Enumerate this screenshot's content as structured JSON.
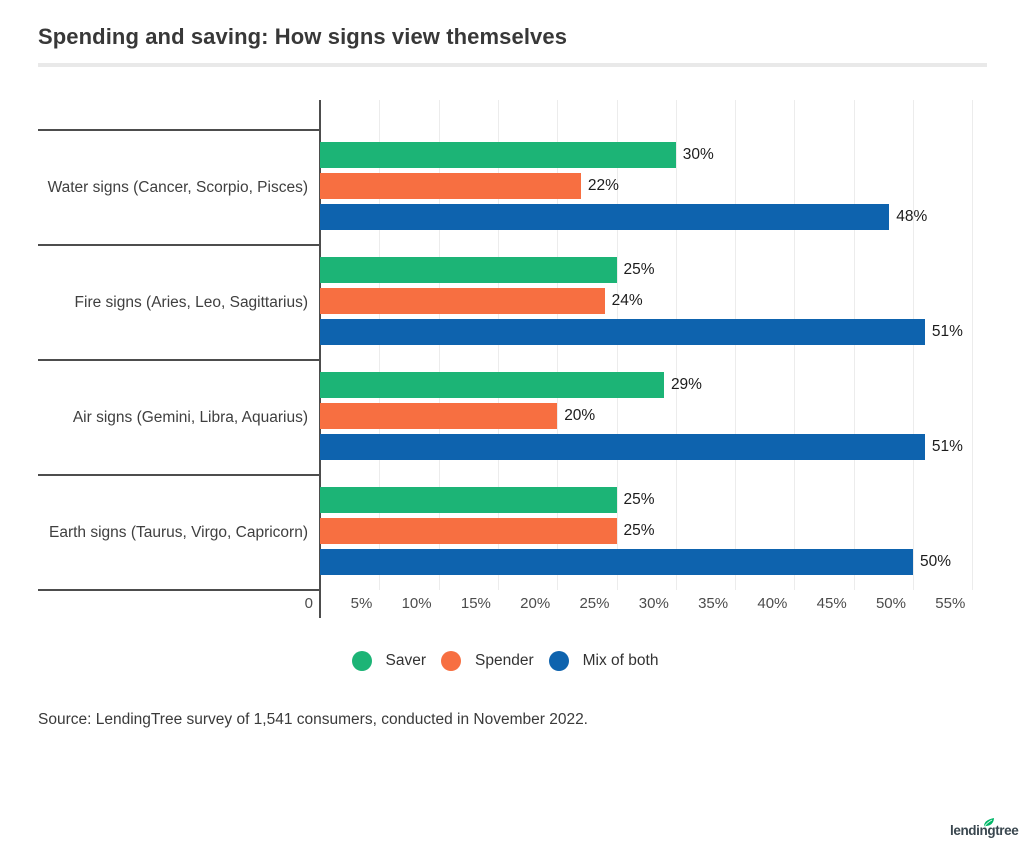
{
  "header": {
    "title": "Spending and saving: How signs view themselves"
  },
  "chart_data": {
    "type": "bar",
    "orientation": "horizontal",
    "title": "Spending and saving: How signs view themselves",
    "categories": [
      "Water signs (Cancer, Scorpio, Pisces)",
      "Fire signs (Aries, Leo, Sagittarius)",
      "Air signs (Gemini, Libra, Aquarius)",
      "Earth signs (Taurus, Virgo, Capricorn)"
    ],
    "series": [
      {
        "name": "Saver",
        "color": "#1cb476",
        "values": [
          30,
          25,
          29,
          25
        ]
      },
      {
        "name": "Spender",
        "color": "#f76f41",
        "values": [
          22,
          24,
          20,
          25
        ]
      },
      {
        "name": "Mix of both",
        "color": "#0e63ae",
        "values": [
          48,
          51,
          51,
          50
        ]
      }
    ],
    "value_suffix": "%",
    "x_ticks": [
      "0",
      "5%",
      "10%",
      "15%",
      "20%",
      "25%",
      "30%",
      "35%",
      "40%",
      "45%",
      "50%",
      "55%"
    ],
    "x_tick_values": [
      0,
      5,
      10,
      15,
      20,
      25,
      30,
      35,
      40,
      45,
      50,
      55
    ],
    "xlim": [
      0,
      55
    ],
    "grid": true,
    "legend_position": "bottom",
    "colors": {
      "grid": "#ececec",
      "axis": "#4d4d4d",
      "value_label": "#1c1c1c"
    }
  },
  "footer": {
    "source": "Source: LendingTree survey of 1,541 consumers, conducted in November 2022.",
    "logo_text": "lendingtree",
    "logo_leaf_color": "#00b667"
  }
}
